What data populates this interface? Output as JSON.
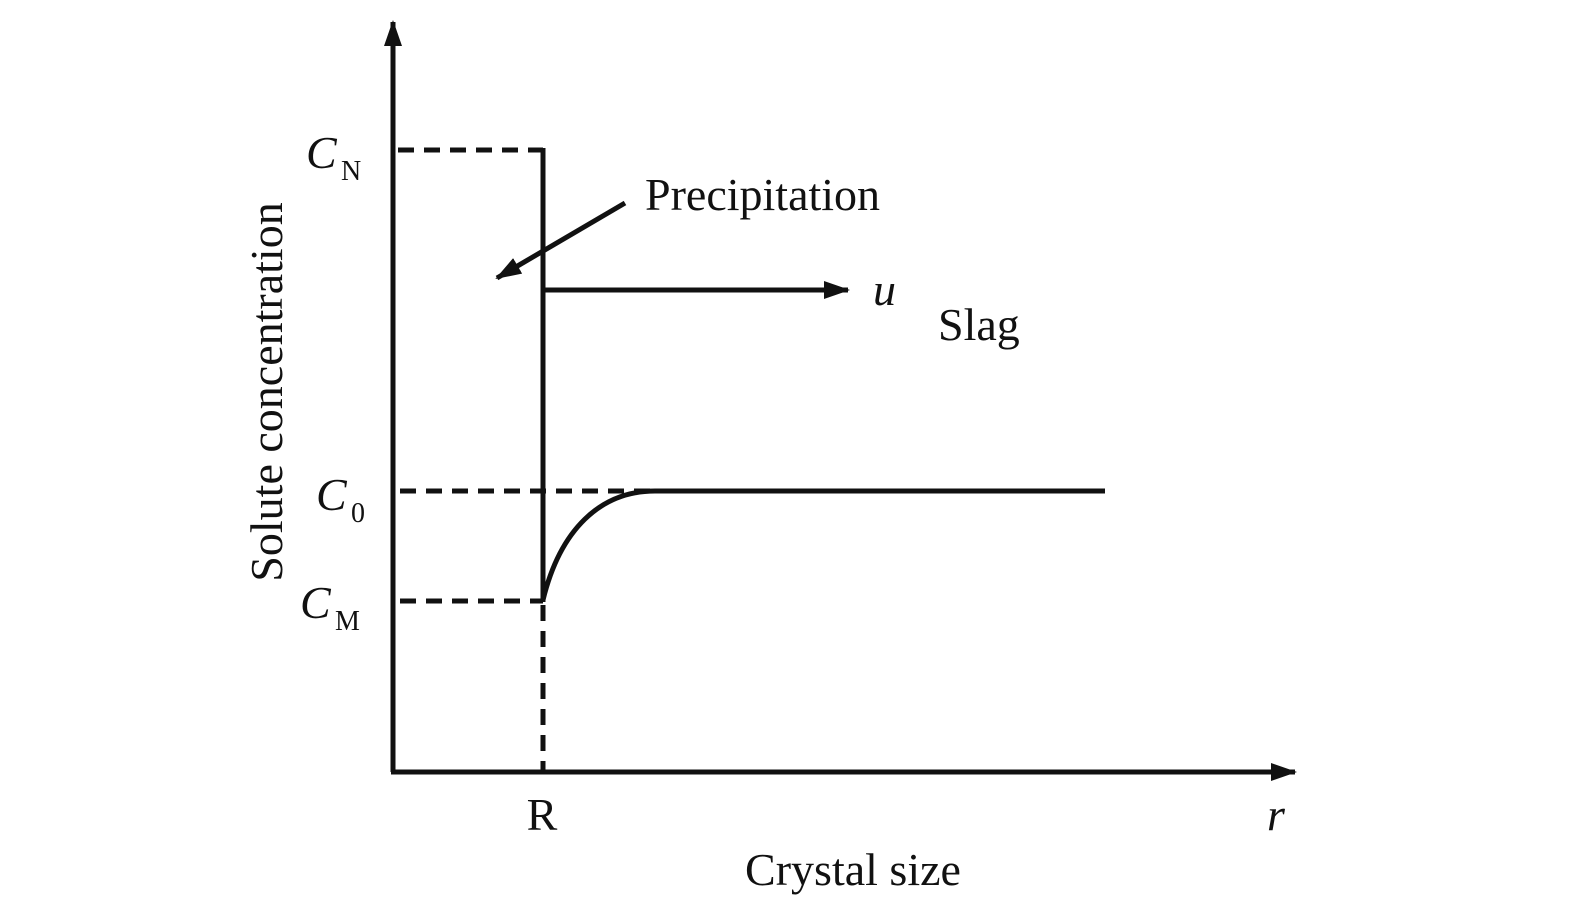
{
  "diagram": {
    "y_axis_label": "Solute concentration",
    "x_axis_label": "Crystal size",
    "x_marker": "R",
    "x_axis_symbol": "r",
    "levels": [
      {
        "main": "C",
        "sub": "N"
      },
      {
        "main": "C",
        "sub": "0"
      },
      {
        "main": "C",
        "sub": "M"
      }
    ],
    "annotations": {
      "precipitation": "Precipitation",
      "velocity": "u",
      "region": "Slag"
    }
  }
}
